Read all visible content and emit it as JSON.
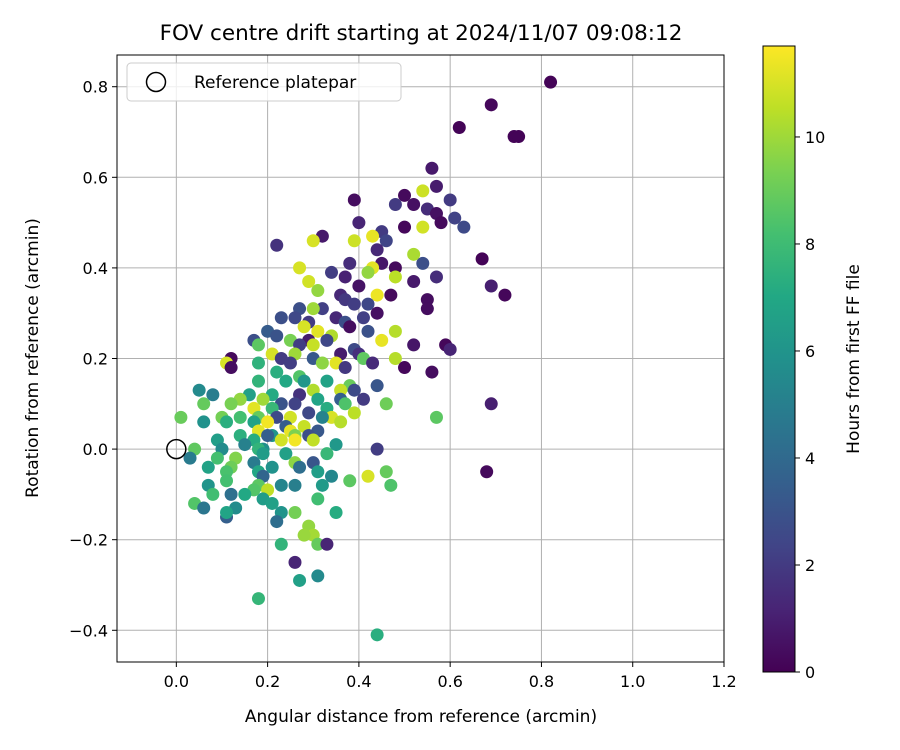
{
  "chart_data": {
    "type": "scatter",
    "title": "FOV centre drift starting at 2024/11/07 09:08:12",
    "xlabel": "Angular distance from reference (arcmin)",
    "ylabel": "Rotation from reference (arcmin)",
    "xlim": [
      -0.13,
      1.2
    ],
    "ylim": [
      -0.47,
      0.87
    ],
    "xticks": [
      0.0,
      0.2,
      0.4,
      0.6,
      0.8,
      1.0,
      1.2
    ],
    "xtick_labels": [
      "0.0",
      "0.2",
      "0.4",
      "0.6",
      "0.8",
      "1.0",
      "1.2"
    ],
    "yticks": [
      -0.4,
      -0.2,
      0.0,
      0.2,
      0.4,
      0.6,
      0.8
    ],
    "ytick_labels": [
      "−0.4",
      "−0.2",
      "0.0",
      "0.2",
      "0.4",
      "0.6",
      "0.8"
    ],
    "grid": true,
    "legend": {
      "placement": "top-left",
      "entries": [
        "Reference platepar"
      ]
    },
    "reference_point": {
      "x": 0.0,
      "y": 0.0
    },
    "colorbar": {
      "label": "Hours from first FF file",
      "range": [
        0,
        11.7
      ],
      "ticks": [
        0,
        2,
        4,
        6,
        8,
        10
      ],
      "tick_labels": [
        "0",
        "2",
        "4",
        "6",
        "8",
        "10"
      ],
      "colormap": "viridis"
    },
    "points": [
      [
        0.82,
        0.81,
        0.1
      ],
      [
        0.69,
        0.76,
        0.2
      ],
      [
        0.62,
        0.71,
        0.1
      ],
      [
        0.74,
        0.69,
        0.1
      ],
      [
        0.75,
        0.69,
        0.1
      ],
      [
        0.56,
        0.62,
        0.8
      ],
      [
        0.57,
        0.58,
        0.9
      ],
      [
        0.54,
        0.57,
        10.8
      ],
      [
        0.6,
        0.55,
        2.0
      ],
      [
        0.5,
        0.56,
        0.3
      ],
      [
        0.39,
        0.55,
        0.4
      ],
      [
        0.48,
        0.54,
        2.0
      ],
      [
        0.52,
        0.54,
        0.5
      ],
      [
        0.55,
        0.53,
        1.5
      ],
      [
        0.57,
        0.52,
        0.5
      ],
      [
        0.61,
        0.51,
        2.3
      ],
      [
        0.58,
        0.5,
        0.3
      ],
      [
        0.63,
        0.49,
        2.6
      ],
      [
        0.54,
        0.49,
        10.9
      ],
      [
        0.4,
        0.5,
        1.2
      ],
      [
        0.5,
        0.49,
        0.2
      ],
      [
        0.45,
        0.48,
        2.0
      ],
      [
        0.43,
        0.47,
        11.3
      ],
      [
        0.32,
        0.47,
        0.8
      ],
      [
        0.46,
        0.46,
        2.4
      ],
      [
        0.52,
        0.43,
        10.2
      ],
      [
        0.39,
        0.46,
        10.8
      ],
      [
        0.3,
        0.46,
        11.0
      ],
      [
        0.22,
        0.45,
        1.7
      ],
      [
        0.44,
        0.44,
        1.3
      ],
      [
        0.67,
        0.42,
        0.1
      ],
      [
        0.54,
        0.41,
        2.8
      ],
      [
        0.45,
        0.41,
        0.7
      ],
      [
        0.48,
        0.4,
        0.3
      ],
      [
        0.43,
        0.4,
        11.2
      ],
      [
        0.38,
        0.41,
        1.5
      ],
      [
        0.27,
        0.4,
        11.0
      ],
      [
        0.34,
        0.39,
        2.1
      ],
      [
        0.42,
        0.39,
        9.8
      ],
      [
        0.37,
        0.38,
        1.1
      ],
      [
        0.57,
        0.38,
        1.5
      ],
      [
        0.69,
        0.36,
        1.0
      ],
      [
        0.48,
        0.38,
        10.5
      ],
      [
        0.29,
        0.37,
        10.9
      ],
      [
        0.4,
        0.36,
        0.6
      ],
      [
        0.52,
        0.37,
        0.8
      ],
      [
        0.31,
        0.35,
        9.8
      ],
      [
        0.72,
        0.34,
        0.2
      ],
      [
        0.55,
        0.33,
        0.4
      ],
      [
        0.36,
        0.34,
        1.3
      ],
      [
        0.44,
        0.34,
        11.4
      ],
      [
        0.47,
        0.34,
        0.3
      ],
      [
        0.37,
        0.33,
        1.9
      ],
      [
        0.39,
        0.32,
        2.1
      ],
      [
        0.42,
        0.32,
        2.5
      ],
      [
        0.55,
        0.31,
        0.4
      ],
      [
        0.32,
        0.31,
        2.2
      ],
      [
        0.27,
        0.31,
        2.8
      ],
      [
        0.3,
        0.31,
        10.0
      ],
      [
        0.44,
        0.3,
        0.5
      ],
      [
        0.35,
        0.29,
        1.3
      ],
      [
        0.41,
        0.29,
        2.2
      ],
      [
        0.23,
        0.29,
        2.8
      ],
      [
        0.26,
        0.29,
        2.5
      ],
      [
        0.29,
        0.28,
        2.0
      ],
      [
        0.37,
        0.28,
        2.8
      ],
      [
        0.38,
        0.27,
        0.4
      ],
      [
        0.28,
        0.27,
        11.0
      ],
      [
        0.31,
        0.26,
        11.2
      ],
      [
        0.2,
        0.26,
        3.4
      ],
      [
        0.34,
        0.25,
        10.3
      ],
      [
        0.42,
        0.26,
        2.9
      ],
      [
        0.48,
        0.26,
        10.4
      ],
      [
        0.22,
        0.25,
        3.0
      ],
      [
        0.25,
        0.24,
        9.3
      ],
      [
        0.17,
        0.24,
        2.8
      ],
      [
        0.29,
        0.24,
        0.9
      ],
      [
        0.33,
        0.24,
        2.5
      ],
      [
        0.45,
        0.24,
        11.3
      ],
      [
        0.52,
        0.23,
        0.7
      ],
      [
        0.59,
        0.23,
        0.2
      ],
      [
        0.6,
        0.22,
        1.2
      ],
      [
        0.39,
        0.22,
        2.6
      ],
      [
        0.27,
        0.23,
        2.1
      ],
      [
        0.3,
        0.23,
        10.7
      ],
      [
        0.18,
        0.23,
        8.7
      ],
      [
        0.4,
        0.21,
        1.6
      ],
      [
        0.21,
        0.21,
        11.0
      ],
      [
        0.26,
        0.21,
        10.0
      ],
      [
        0.36,
        0.21,
        0.9
      ],
      [
        0.23,
        0.2,
        2.0
      ],
      [
        0.12,
        0.2,
        0.3
      ],
      [
        0.3,
        0.2,
        3.2
      ],
      [
        0.41,
        0.2,
        8.8
      ],
      [
        0.48,
        0.2,
        10.4
      ],
      [
        0.18,
        0.19,
        7.5
      ],
      [
        0.25,
        0.19,
        2.1
      ],
      [
        0.35,
        0.19,
        11.2
      ],
      [
        0.43,
        0.19,
        1.4
      ],
      [
        0.11,
        0.19,
        11.0
      ],
      [
        0.32,
        0.19,
        9.7
      ],
      [
        0.12,
        0.18,
        0.4
      ],
      [
        0.5,
        0.18,
        0.2
      ],
      [
        0.37,
        0.18,
        1.9
      ],
      [
        0.56,
        0.17,
        0.4
      ],
      [
        0.22,
        0.17,
        7.3
      ],
      [
        0.27,
        0.16,
        8.5
      ],
      [
        0.24,
        0.15,
        7.0
      ],
      [
        0.28,
        0.15,
        6.1
      ],
      [
        0.18,
        0.15,
        7.6
      ],
      [
        0.33,
        0.15,
        6.7
      ],
      [
        0.38,
        0.14,
        9.0
      ],
      [
        0.44,
        0.14,
        3.1
      ],
      [
        0.39,
        0.13,
        2.6
      ],
      [
        0.3,
        0.13,
        10.3
      ],
      [
        0.36,
        0.13,
        10.7
      ],
      [
        0.16,
        0.12,
        6.6
      ],
      [
        0.21,
        0.12,
        7.1
      ],
      [
        0.05,
        0.13,
        5.5
      ],
      [
        0.08,
        0.12,
        4.9
      ],
      [
        0.27,
        0.12,
        1.7
      ],
      [
        0.31,
        0.11,
        6.8
      ],
      [
        0.36,
        0.11,
        3.5
      ],
      [
        0.41,
        0.11,
        2.0
      ],
      [
        0.14,
        0.11,
        9.8
      ],
      [
        0.19,
        0.11,
        10.0
      ],
      [
        0.12,
        0.1,
        9.3
      ],
      [
        0.06,
        0.1,
        8.9
      ],
      [
        0.23,
        0.1,
        3.0
      ],
      [
        0.26,
        0.1,
        2.3
      ],
      [
        0.37,
        0.1,
        8.4
      ],
      [
        0.17,
        0.09,
        11.2
      ],
      [
        0.46,
        0.1,
        9.1
      ],
      [
        0.21,
        0.09,
        7.8
      ],
      [
        0.33,
        0.09,
        7.2
      ],
      [
        0.69,
        0.1,
        1.0
      ],
      [
        0.29,
        0.08,
        2.5
      ],
      [
        0.01,
        0.07,
        9.0
      ],
      [
        0.1,
        0.07,
        9.2
      ],
      [
        0.14,
        0.07,
        8.2
      ],
      [
        0.18,
        0.07,
        8.9
      ],
      [
        0.25,
        0.07,
        10.9
      ],
      [
        0.34,
        0.07,
        11.0
      ],
      [
        0.22,
        0.07,
        2.6
      ],
      [
        0.39,
        0.08,
        10.5
      ],
      [
        0.57,
        0.07,
        8.7
      ],
      [
        0.32,
        0.07,
        5.2
      ],
      [
        0.11,
        0.06,
        7.3
      ],
      [
        0.06,
        0.06,
        5.9
      ],
      [
        0.17,
        0.06,
        6.7
      ],
      [
        0.2,
        0.06,
        11.5
      ],
      [
        0.36,
        0.06,
        10.4
      ],
      [
        0.24,
        0.05,
        3.4
      ],
      [
        0.28,
        0.05,
        10.7
      ],
      [
        0.18,
        0.04,
        11.2
      ],
      [
        0.25,
        0.04,
        11.3
      ],
      [
        0.31,
        0.04,
        3.2
      ],
      [
        0.21,
        0.03,
        6.0
      ],
      [
        0.26,
        0.03,
        9.4
      ],
      [
        0.14,
        0.03,
        7.4
      ],
      [
        0.2,
        0.03,
        3.5
      ],
      [
        0.29,
        0.03,
        2.8
      ],
      [
        0.23,
        0.02,
        10.9
      ],
      [
        0.09,
        0.02,
        6.5
      ],
      [
        0.17,
        0.02,
        7.2
      ],
      [
        0.26,
        0.02,
        11.5
      ],
      [
        0.15,
        0.01,
        5.1
      ],
      [
        0.3,
        0.02,
        10.6
      ],
      [
        0.19,
        0.0,
        5.7
      ],
      [
        0.35,
        0.01,
        6.2
      ],
      [
        0.04,
        0.0,
        8.8
      ],
      [
        0.1,
        0.0,
        5.6
      ],
      [
        0.18,
        0.0,
        7.6
      ],
      [
        0.44,
        0.0,
        2.1
      ],
      [
        0.33,
        -0.01,
        7.8
      ],
      [
        0.24,
        -0.01,
        6.6
      ],
      [
        0.03,
        -0.02,
        4.8
      ],
      [
        0.09,
        -0.02,
        8.2
      ],
      [
        0.13,
        -0.02,
        9.5
      ],
      [
        0.19,
        -0.01,
        6.4
      ],
      [
        0.26,
        -0.03,
        9.7
      ],
      [
        0.3,
        -0.03,
        3.1
      ],
      [
        0.17,
        -0.03,
        4.8
      ],
      [
        0.07,
        -0.04,
        6.7
      ],
      [
        0.12,
        -0.04,
        9.1
      ],
      [
        0.21,
        -0.04,
        5.9
      ],
      [
        0.27,
        -0.04,
        4.2
      ],
      [
        0.31,
        -0.05,
        6.5
      ],
      [
        0.18,
        -0.05,
        6.9
      ],
      [
        0.11,
        -0.05,
        8.3
      ],
      [
        0.68,
        -0.05,
        0.3
      ],
      [
        0.42,
        -0.06,
        11.0
      ],
      [
        0.46,
        -0.05,
        8.9
      ],
      [
        0.19,
        -0.06,
        3.8
      ],
      [
        0.34,
        -0.06,
        5.4
      ],
      [
        0.11,
        -0.07,
        8.2
      ],
      [
        0.38,
        -0.07,
        8.7
      ],
      [
        0.47,
        -0.08,
        8.4
      ],
      [
        0.07,
        -0.08,
        6.0
      ],
      [
        0.18,
        -0.08,
        8.7
      ],
      [
        0.2,
        -0.09,
        10.6
      ],
      [
        0.23,
        -0.08,
        5.3
      ],
      [
        0.26,
        -0.08,
        5.0
      ],
      [
        0.32,
        -0.08,
        6.3
      ],
      [
        0.08,
        -0.1,
        8.1
      ],
      [
        0.17,
        -0.09,
        8.5
      ],
      [
        0.12,
        -0.1,
        4.3
      ],
      [
        0.15,
        -0.1,
        7.0
      ],
      [
        0.31,
        -0.11,
        8.1
      ],
      [
        0.04,
        -0.12,
        8.5
      ],
      [
        0.19,
        -0.11,
        6.4
      ],
      [
        0.21,
        -0.12,
        6.6
      ],
      [
        0.06,
        -0.13,
        4.6
      ],
      [
        0.13,
        -0.13,
        5.6
      ],
      [
        0.11,
        -0.15,
        3.5
      ],
      [
        0.23,
        -0.14,
        6.0
      ],
      [
        0.26,
        -0.14,
        9.2
      ],
      [
        0.35,
        -0.14,
        7.2
      ],
      [
        0.11,
        -0.14,
        6.8
      ],
      [
        0.22,
        -0.16,
        4.2
      ],
      [
        0.29,
        -0.17,
        9.8
      ],
      [
        0.3,
        -0.19,
        10.1
      ],
      [
        0.28,
        -0.19,
        9.9
      ],
      [
        0.23,
        -0.21,
        7.6
      ],
      [
        0.31,
        -0.21,
        8.9
      ],
      [
        0.33,
        -0.21,
        1.2
      ],
      [
        0.26,
        -0.25,
        1.2
      ],
      [
        0.31,
        -0.28,
        5.5
      ],
      [
        0.27,
        -0.29,
        6.6
      ],
      [
        0.18,
        -0.33,
        7.7
      ],
      [
        0.44,
        -0.41,
        7.3
      ]
    ]
  }
}
